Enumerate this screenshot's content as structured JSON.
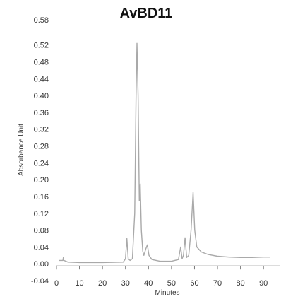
{
  "chart_data": {
    "type": "line",
    "title": "AvBD11",
    "xlabel": "Minutes",
    "ylabel": "Absorbance Unit",
    "xlim": [
      0,
      97
    ],
    "ylim": [
      -0.04,
      0.58
    ],
    "x_ticks": [
      0,
      10,
      20,
      30,
      40,
      50,
      60,
      70,
      80,
      90
    ],
    "y_ticks": [
      -0.04,
      0.0,
      0.04,
      0.08,
      0.12,
      0.16,
      0.2,
      0.24,
      0.28,
      0.32,
      0.36,
      0.4,
      0.44,
      0.48,
      0.52,
      0.58
    ],
    "grid": false,
    "line_color": "#a9a9a9",
    "series": [
      {
        "points": [
          [
            1.0,
            0.008
          ],
          [
            2.8,
            0.008
          ],
          [
            3.0,
            0.016
          ],
          [
            3.2,
            0.008
          ],
          [
            5.0,
            0.004
          ],
          [
            10.0,
            0.003
          ],
          [
            20.0,
            0.003
          ],
          [
            29.0,
            0.004
          ],
          [
            30.0,
            0.012
          ],
          [
            30.6,
            0.06
          ],
          [
            31.2,
            0.012
          ],
          [
            32.0,
            0.008
          ],
          [
            33.0,
            0.012
          ],
          [
            34.0,
            0.12
          ],
          [
            34.6,
            0.4
          ],
          [
            35.0,
            0.524
          ],
          [
            35.5,
            0.4
          ],
          [
            36.0,
            0.15
          ],
          [
            36.4,
            0.19
          ],
          [
            36.9,
            0.08
          ],
          [
            37.5,
            0.03
          ],
          [
            38.0,
            0.02
          ],
          [
            38.8,
            0.035
          ],
          [
            39.5,
            0.045
          ],
          [
            40.2,
            0.02
          ],
          [
            41.5,
            0.01
          ],
          [
            45.0,
            0.006
          ],
          [
            50.0,
            0.006
          ],
          [
            53.0,
            0.01
          ],
          [
            54.0,
            0.04
          ],
          [
            54.6,
            0.012
          ],
          [
            55.2,
            0.02
          ],
          [
            55.9,
            0.062
          ],
          [
            56.6,
            0.015
          ],
          [
            57.5,
            0.02
          ],
          [
            58.5,
            0.08
          ],
          [
            59.4,
            0.17
          ],
          [
            60.1,
            0.08
          ],
          [
            61.0,
            0.04
          ],
          [
            63.0,
            0.028
          ],
          [
            66.0,
            0.022
          ],
          [
            70.0,
            0.018
          ],
          [
            75.0,
            0.016
          ],
          [
            80.0,
            0.015
          ],
          [
            85.0,
            0.015
          ],
          [
            90.0,
            0.016
          ],
          [
            93.0,
            0.016
          ]
        ]
      }
    ]
  }
}
